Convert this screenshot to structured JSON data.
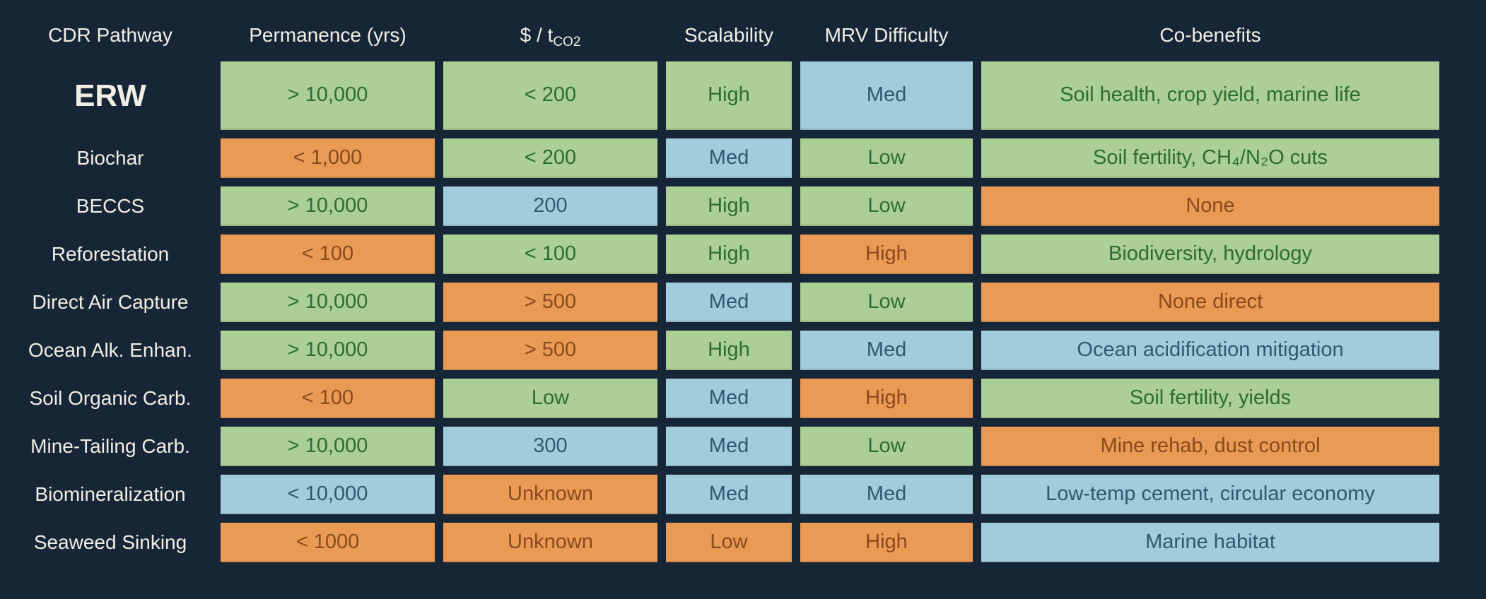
{
  "headers": {
    "pathway": "CDR Pathway",
    "permanence": "Permanence (yrs)",
    "cost_main": "$ / t",
    "cost_sub": "CO2",
    "scalability": "Scalability",
    "mrv": "MRV Difficulty",
    "cobenefits": "Co-benefits"
  },
  "colors": {
    "background": "#172636",
    "green": "#abcf96",
    "orange": "#e99a55",
    "blue": "#a2cbdc"
  },
  "rows": [
    {
      "name": "ERW",
      "cells": [
        {
          "v": "> 10,000",
          "c": "green"
        },
        {
          "v": "< 200",
          "c": "green"
        },
        {
          "v": "High",
          "c": "green"
        },
        {
          "v": "Med",
          "c": "blue"
        },
        {
          "v": "Soil health, crop yield, marine life",
          "c": "green"
        }
      ]
    },
    {
      "name": "Biochar",
      "cells": [
        {
          "v": "< 1,000",
          "c": "orange"
        },
        {
          "v": "< 200",
          "c": "green"
        },
        {
          "v": "Med",
          "c": "blue"
        },
        {
          "v": "Low",
          "c": "green"
        },
        {
          "v": "Soil fertility, CH₄/N₂O cuts",
          "c": "green"
        }
      ]
    },
    {
      "name": "BECCS",
      "cells": [
        {
          "v": "> 10,000",
          "c": "green"
        },
        {
          "v": "200",
          "c": "blue"
        },
        {
          "v": "High",
          "c": "green"
        },
        {
          "v": "Low",
          "c": "green"
        },
        {
          "v": "None",
          "c": "orange"
        }
      ]
    },
    {
      "name": "Reforestation",
      "cells": [
        {
          "v": "< 100",
          "c": "orange"
        },
        {
          "v": "< 100",
          "c": "green"
        },
        {
          "v": "High",
          "c": "green"
        },
        {
          "v": "High",
          "c": "orange"
        },
        {
          "v": "Biodiversity, hydrology",
          "c": "green"
        }
      ]
    },
    {
      "name": "Direct Air Capture",
      "cells": [
        {
          "v": "> 10,000",
          "c": "green"
        },
        {
          "v": "> 500",
          "c": "orange"
        },
        {
          "v": "Med",
          "c": "blue"
        },
        {
          "v": "Low",
          "c": "green"
        },
        {
          "v": "None direct",
          "c": "orange"
        }
      ]
    },
    {
      "name": "Ocean Alk. Enhan.",
      "cells": [
        {
          "v": "> 10,000",
          "c": "green"
        },
        {
          "v": "> 500",
          "c": "orange"
        },
        {
          "v": "High",
          "c": "green"
        },
        {
          "v": "Med",
          "c": "blue"
        },
        {
          "v": "Ocean acidification mitigation",
          "c": "blue"
        }
      ]
    },
    {
      "name": "Soil Organic Carb.",
      "cells": [
        {
          "v": "< 100",
          "c": "orange"
        },
        {
          "v": "Low",
          "c": "green"
        },
        {
          "v": "Med",
          "c": "blue"
        },
        {
          "v": "High",
          "c": "orange"
        },
        {
          "v": "Soil fertility, yields",
          "c": "green"
        }
      ]
    },
    {
      "name": "Mine-Tailing Carb.",
      "cells": [
        {
          "v": "> 10,000",
          "c": "green"
        },
        {
          "v": "300",
          "c": "blue"
        },
        {
          "v": "Med",
          "c": "blue"
        },
        {
          "v": "Low",
          "c": "green"
        },
        {
          "v": "Mine rehab, dust control",
          "c": "orange"
        }
      ]
    },
    {
      "name": "Biomineralization",
      "cells": [
        {
          "v": "< 10,000",
          "c": "blue"
        },
        {
          "v": "Unknown",
          "c": "orange"
        },
        {
          "v": "Med",
          "c": "blue"
        },
        {
          "v": "Med",
          "c": "blue"
        },
        {
          "v": "Low-temp cement, circular economy",
          "c": "blue"
        }
      ]
    },
    {
      "name": "Seaweed Sinking",
      "cells": [
        {
          "v": "< 1000",
          "c": "orange"
        },
        {
          "v": "Unknown",
          "c": "orange"
        },
        {
          "v": "Low",
          "c": "orange"
        },
        {
          "v": "High",
          "c": "orange"
        },
        {
          "v": "Marine habitat",
          "c": "blue"
        }
      ]
    }
  ]
}
